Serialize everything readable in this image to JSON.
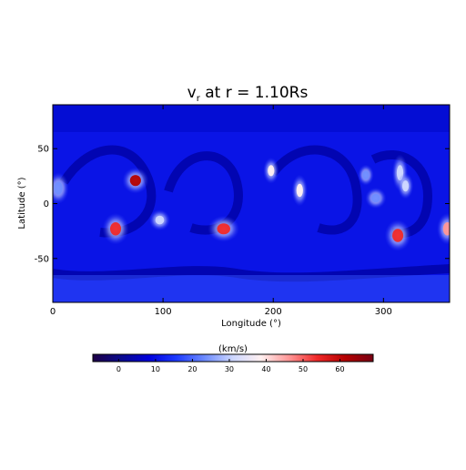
{
  "chart_data": [
    {
      "type": "heatmap",
      "title": "vr at r = 1.10Rs",
      "title_symbol": "v",
      "title_subscript": "r",
      "title_rest": " at r = 1.10Rs",
      "xlabel": "Longitude (°)",
      "ylabel": "Latitude (°)",
      "xlim": [
        0,
        360
      ],
      "ylim": [
        -90,
        90
      ],
      "xticks": [
        0,
        100,
        200,
        300
      ],
      "yticks": [
        50,
        0,
        -50
      ],
      "background_level": 10,
      "blobs": [
        {
          "lon": 75,
          "lat": 21,
          "peak": 60,
          "rlon": 5,
          "rlat": 5
        },
        {
          "lon": 198,
          "lat": 30,
          "peak": 36,
          "rlon": 3,
          "rlat": 5
        },
        {
          "lon": 224,
          "lat": 12,
          "peak": 38,
          "rlon": 3,
          "rlat": 6
        },
        {
          "lon": 315,
          "lat": 28,
          "peak": 34,
          "rlon": 3,
          "rlat": 7
        },
        {
          "lon": 320,
          "lat": 16,
          "peak": 32,
          "rlon": 3,
          "rlat": 5
        },
        {
          "lon": 5,
          "lat": 14,
          "peak": 24,
          "rlon": 4,
          "rlat": 6
        },
        {
          "lon": 57,
          "lat": -23,
          "peak": 56,
          "rlon": 5,
          "rlat": 6
        },
        {
          "lon": 155,
          "lat": -23,
          "peak": 55,
          "rlon": 6,
          "rlat": 5
        },
        {
          "lon": 313,
          "lat": -29,
          "peak": 54,
          "rlon": 5,
          "rlat": 6
        },
        {
          "lon": 358,
          "lat": -23,
          "peak": 48,
          "rlon": 4,
          "rlat": 6
        },
        {
          "lon": 97,
          "lat": -15,
          "peak": 30,
          "rlon": 4,
          "rlat": 4
        },
        {
          "lon": 293,
          "lat": 5,
          "peak": 26,
          "rlon": 4,
          "rlat": 4
        },
        {
          "lon": 284,
          "lat": 26,
          "peak": 22,
          "rlon": 3,
          "rlat": 4
        }
      ]
    },
    {
      "type": "colorbar",
      "label": "(km/s)",
      "range": [
        -7,
        69
      ],
      "ticks": [
        0,
        10,
        20,
        30,
        40,
        50,
        60
      ],
      "colors": [
        "#1e0046",
        "#0a0a8c",
        "#0000dc",
        "#1e3cff",
        "#6e8cff",
        "#cdd7ff",
        "#fff0f0",
        "#ff9696",
        "#f02828",
        "#b40000",
        "#780014"
      ]
    }
  ]
}
